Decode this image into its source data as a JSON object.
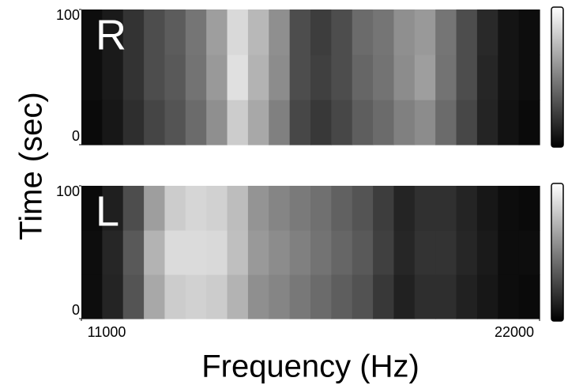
{
  "chart_data": [
    {
      "type": "heatmap",
      "label": "R",
      "ylabel": "Time (sec)",
      "xlim": [
        11000,
        22000
      ],
      "ylim": [
        0,
        100
      ],
      "yticks": [
        0,
        100
      ],
      "zlim": [
        0,
        1
      ],
      "values": [
        [
          0.04,
          0.09,
          0.18,
          0.27,
          0.33,
          0.42,
          0.56,
          0.8,
          0.66,
          0.5,
          0.28,
          0.22,
          0.28,
          0.37,
          0.42,
          0.5,
          0.55,
          0.42,
          0.28,
          0.14,
          0.07,
          0.04
        ],
        [
          0.05,
          0.1,
          0.2,
          0.3,
          0.35,
          0.45,
          0.6,
          0.88,
          0.7,
          0.55,
          0.3,
          0.25,
          0.3,
          0.4,
          0.45,
          0.55,
          0.62,
          0.45,
          0.3,
          0.15,
          0.08,
          0.05
        ],
        [
          0.05,
          0.1,
          0.2,
          0.3,
          0.36,
          0.46,
          0.62,
          0.85,
          0.72,
          0.56,
          0.3,
          0.24,
          0.3,
          0.42,
          0.46,
          0.56,
          0.6,
          0.46,
          0.3,
          0.16,
          0.08,
          0.05
        ]
      ]
    },
    {
      "type": "heatmap",
      "label": "L",
      "xlabel": "Frequency (Hz)",
      "xlim": [
        11000,
        22000
      ],
      "xticks": [
        11000,
        22000
      ],
      "ylim": [
        0,
        100
      ],
      "yticks": [
        0,
        100
      ],
      "zlim": [
        0,
        1
      ],
      "values": [
        [
          0.05,
          0.14,
          0.33,
          0.66,
          0.8,
          0.82,
          0.8,
          0.7,
          0.56,
          0.52,
          0.47,
          0.42,
          0.37,
          0.32,
          0.22,
          0.13,
          0.18,
          0.18,
          0.13,
          0.09,
          0.05,
          0.04
        ],
        [
          0.05,
          0.15,
          0.35,
          0.7,
          0.86,
          0.86,
          0.85,
          0.75,
          0.6,
          0.55,
          0.5,
          0.45,
          0.4,
          0.35,
          0.25,
          0.15,
          0.2,
          0.2,
          0.15,
          0.1,
          0.05,
          0.05
        ],
        [
          0.04,
          0.12,
          0.3,
          0.62,
          0.8,
          0.84,
          0.82,
          0.74,
          0.58,
          0.52,
          0.48,
          0.44,
          0.38,
          0.33,
          0.24,
          0.14,
          0.19,
          0.19,
          0.14,
          0.09,
          0.05,
          0.04
        ]
      ]
    }
  ]
}
